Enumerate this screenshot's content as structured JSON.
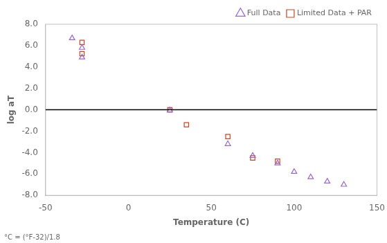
{
  "chart_data": {
    "type": "scatter",
    "xlabel": "Temperature (C)",
    "ylabel": "log aT",
    "series": [
      {
        "name": "Full Data",
        "color": "#9966CC",
        "marker": "triangle",
        "x": [
          -34,
          -28,
          -28,
          25,
          60,
          75,
          90,
          100,
          110,
          120,
          130
        ],
        "values": [
          6.7,
          5.8,
          4.9,
          -0.05,
          -3.2,
          -4.3,
          -5.0,
          -5.8,
          -6.3,
          -6.7,
          -7.0
        ]
      },
      {
        "name": "Limited Data + PAR",
        "color": "#CC4422",
        "marker": "square",
        "x": [
          -28,
          -28,
          25,
          35,
          60,
          75,
          90
        ],
        "values": [
          6.3,
          5.25,
          0.0,
          -1.4,
          -2.5,
          -4.5,
          -4.8
        ]
      }
    ],
    "xlim": [
      -50,
      150
    ],
    "ylim": [
      -8.0,
      8.0
    ],
    "xticks": [
      -50,
      0,
      50,
      100,
      150
    ],
    "yticks": [
      {
        "value": -8.0,
        "label": "-8.0"
      },
      {
        "value": -6.0,
        "label": "-6.0"
      },
      {
        "value": -4.0,
        "label": "-4.0"
      },
      {
        "value": -2.0,
        "label": "-2.0"
      },
      {
        "value": 0.0,
        "label": "0.0"
      },
      {
        "value": 2.0,
        "label": "2.0"
      },
      {
        "value": 4.0,
        "label": "4.0"
      },
      {
        "value": 6.0,
        "label": "6.0"
      },
      {
        "value": 8.0,
        "label": "8.0"
      }
    ],
    "hlines": [
      0
    ],
    "footnote": "°C = (°F-32)/1.8",
    "legend": "upper right",
    "grid": false
  }
}
